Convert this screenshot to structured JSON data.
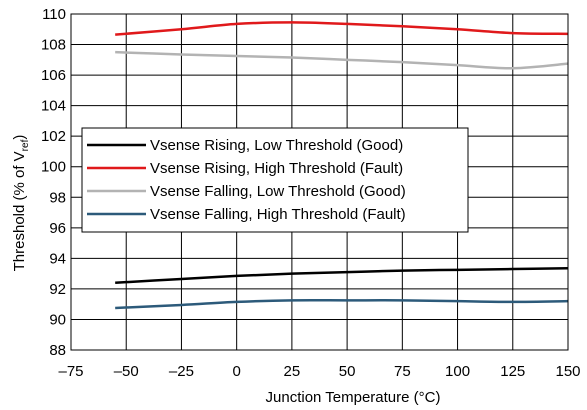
{
  "chart_data": {
    "type": "line",
    "xlabel": "Junction Temperature (°C)",
    "ylabel_parts": [
      "Threshold (% of V",
      "ref",
      ")"
    ],
    "xlim": [
      -75,
      150
    ],
    "ylim": [
      88,
      110
    ],
    "xticks": [
      -75,
      -50,
      -25,
      0,
      25,
      50,
      75,
      100,
      125,
      150
    ],
    "yticks": [
      88,
      90,
      92,
      94,
      96,
      98,
      100,
      102,
      104,
      106,
      108,
      110
    ],
    "grid": "both",
    "legend": "left",
    "series": [
      {
        "name": "Vsense Rising, Low Threshold (Good)",
        "color": "#000000",
        "x": [
          -55,
          -25,
          0,
          25,
          50,
          75,
          100,
          125,
          150
        ],
        "y": [
          92.4,
          92.65,
          92.85,
          93.0,
          93.1,
          93.2,
          93.25,
          93.3,
          93.35
        ]
      },
      {
        "name": "Vsense Rising, High Threshold (Fault)",
        "color": "#e0191b",
        "x": [
          -55,
          -25,
          0,
          25,
          50,
          75,
          100,
          125,
          150
        ],
        "y": [
          108.65,
          109.0,
          109.35,
          109.45,
          109.35,
          109.2,
          109.0,
          108.75,
          108.7
        ]
      },
      {
        "name": "Vsense Falling, Low Threshold (Good)",
        "color": "#b3b3b3",
        "x": [
          -55,
          -25,
          0,
          25,
          50,
          75,
          100,
          125,
          150
        ],
        "y": [
          107.5,
          107.35,
          107.25,
          107.15,
          107.0,
          106.85,
          106.65,
          106.45,
          106.75
        ]
      },
      {
        "name": "Vsense Falling, High Threshold (Fault)",
        "color": "#2c5a7a",
        "x": [
          -55,
          -25,
          0,
          25,
          50,
          75,
          100,
          125,
          150
        ],
        "y": [
          90.75,
          90.95,
          91.15,
          91.25,
          91.25,
          91.25,
          91.2,
          91.15,
          91.2
        ]
      }
    ]
  }
}
